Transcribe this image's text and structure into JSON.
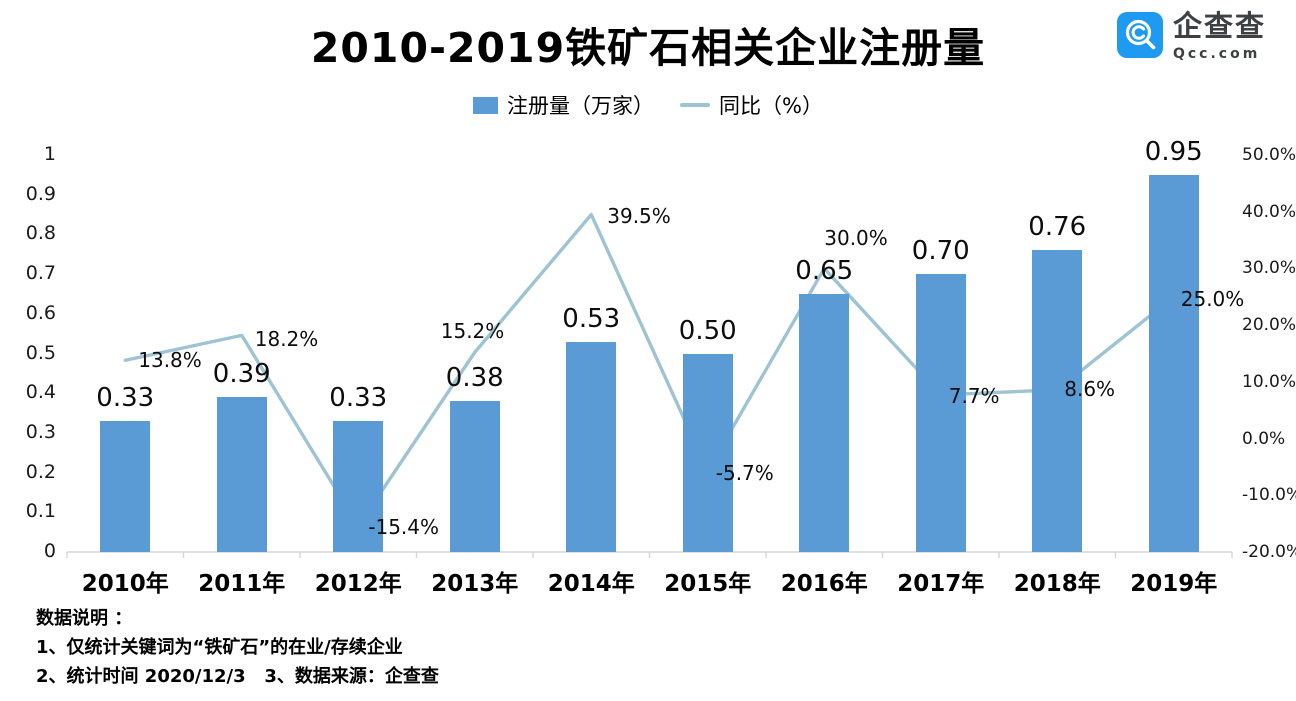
{
  "title": "2010-2019铁矿石相关企业注册量",
  "logo": {
    "name": "企查查",
    "domain": "Qcc.com",
    "brand_color": "#1e9bf0"
  },
  "legend": [
    {
      "label": "注册量（万家）",
      "type": "bar",
      "color": "#5B9BD5"
    },
    {
      "label": "同比（%）",
      "type": "line",
      "color": "#9DC3D4"
    }
  ],
  "chart_data": {
    "type": "combo",
    "categories": [
      "2010年",
      "2011年",
      "2012年",
      "2013年",
      "2014年",
      "2015年",
      "2016年",
      "2017年",
      "2018年",
      "2019年"
    ],
    "series": [
      {
        "name": "注册量（万家）",
        "type": "bar",
        "axis": "left",
        "color": "#5B9BD5",
        "values": [
          0.33,
          0.39,
          0.33,
          0.38,
          0.53,
          0.5,
          0.65,
          0.7,
          0.76,
          0.95
        ],
        "labels": [
          "0.33",
          "0.39",
          "0.33",
          "0.38",
          "0.53",
          "0.50",
          "0.65",
          "0.70",
          "0.76",
          "0.95"
        ]
      },
      {
        "name": "同比（%）",
        "type": "line",
        "axis": "right",
        "color": "#9DC3D4",
        "values": [
          13.8,
          18.2,
          -15.4,
          15.2,
          39.5,
          -5.7,
          30.0,
          7.7,
          8.6,
          25.0
        ],
        "labels": [
          "13.8%",
          "18.2%",
          "-15.4%",
          "15.2%",
          "39.5%",
          "-5.7%",
          "30.0%",
          "7.7%",
          "8.6%",
          "25.0%"
        ]
      }
    ],
    "left_axis": {
      "min": 0,
      "max": 1,
      "ticks": [
        "1",
        "0.9",
        "0.8",
        "0.7",
        "0.6",
        "0.5",
        "0.4",
        "0.3",
        "0.2",
        "0.1",
        "0"
      ]
    },
    "right_axis": {
      "min": -20,
      "max": 50,
      "ticks": [
        "50.0%",
        "40.0%",
        "30.0%",
        "20.0%",
        "10.0%",
        "0.0%",
        "-10.0%",
        "-20.0%"
      ]
    },
    "grid": false,
    "legend_position": "top",
    "axis_line_color": "#d6d6d6"
  },
  "notes": {
    "lines": [
      "数据说明 ：",
      "1、仅统计关键词为“铁矿石”的在业/存续企业",
      "2、统计时间 2020/12/3   3、数据来源：企查查"
    ]
  }
}
